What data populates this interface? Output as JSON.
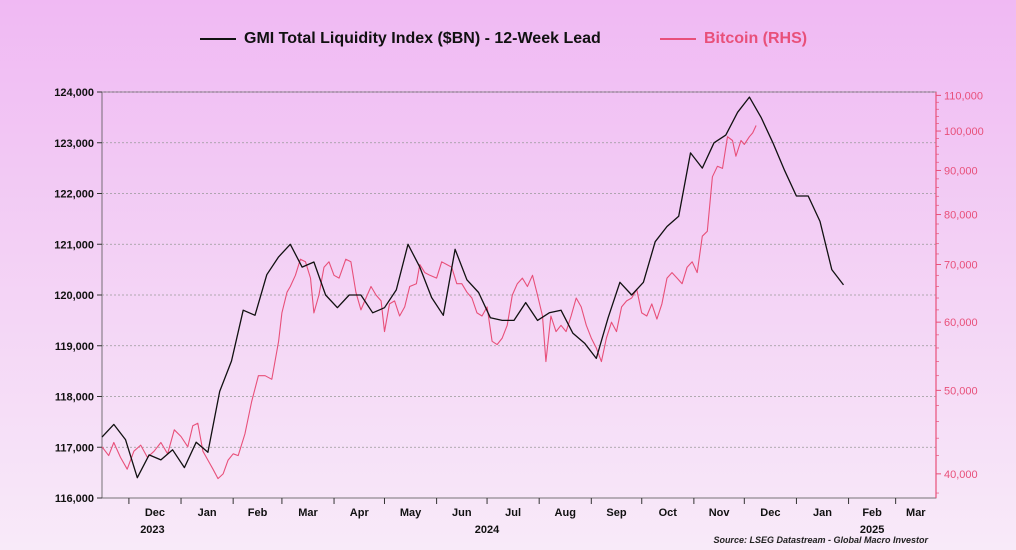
{
  "chart_data": {
    "type": "line",
    "legend": {
      "placement": "top-center"
    },
    "grid": true,
    "source": "Source: LSEG Datastream - Global Macro Investor",
    "x_axis": {
      "range": [
        "2023-11-15",
        "2025-03-25"
      ],
      "month_ticks": [
        {
          "date": "2023-12-01",
          "label": "Dec"
        },
        {
          "date": "2024-01-01",
          "label": "Jan"
        },
        {
          "date": "2024-02-01",
          "label": "Feb"
        },
        {
          "date": "2024-03-01",
          "label": "Mar"
        },
        {
          "date": "2024-04-01",
          "label": "Apr"
        },
        {
          "date": "2024-05-01",
          "label": "May"
        },
        {
          "date": "2024-06-01",
          "label": "Jun"
        },
        {
          "date": "2024-07-01",
          "label": "Jul"
        },
        {
          "date": "2024-08-01",
          "label": "Aug"
        },
        {
          "date": "2024-09-01",
          "label": "Sep"
        },
        {
          "date": "2024-10-01",
          "label": "Oct"
        },
        {
          "date": "2024-11-01",
          "label": "Nov"
        },
        {
          "date": "2024-12-01",
          "label": "Dec"
        },
        {
          "date": "2025-01-01",
          "label": "Jan"
        },
        {
          "date": "2025-02-01",
          "label": "Feb"
        },
        {
          "date": "2025-03-01",
          "label": "Mar"
        }
      ],
      "year_labels": [
        {
          "date": "2023-12-15",
          "label": "2023"
        },
        {
          "date": "2024-07-01",
          "label": "2024"
        },
        {
          "date": "2025-02-15",
          "label": "2025"
        }
      ]
    },
    "y_left": {
      "range": [
        116000,
        124000
      ],
      "ticks": [
        116000,
        117000,
        118000,
        119000,
        120000,
        121000,
        122000,
        123000,
        124000
      ],
      "tick_labels": [
        "116,000",
        "117,000",
        "118,000",
        "119,000",
        "120,000",
        "121,000",
        "122,000",
        "123,000",
        "124,000"
      ]
    },
    "y_right": {
      "scale": "log",
      "range": [
        37500,
        111000
      ],
      "ticks": [
        40000,
        50000,
        60000,
        70000,
        80000,
        90000,
        100000,
        110000
      ],
      "tick_labels": [
        "40,000",
        "50,000",
        "60,000",
        "70,000",
        "80,000",
        "90,000",
        "100,000",
        "110,000"
      ],
      "color": "#e8507a"
    },
    "series": [
      {
        "name": "GMI Total Liquidity Index ($BN) - 12-Week Lead",
        "axis": "left",
        "color": "#111111",
        "points": [
          [
            "2023-11-15",
            117200
          ],
          [
            "2023-11-22",
            117450
          ],
          [
            "2023-11-29",
            117150
          ],
          [
            "2023-12-06",
            116400
          ],
          [
            "2023-12-13",
            116850
          ],
          [
            "2023-12-20",
            116750
          ],
          [
            "2023-12-27",
            116950
          ],
          [
            "2024-01-03",
            116600
          ],
          [
            "2024-01-10",
            117100
          ],
          [
            "2024-01-17",
            116900
          ],
          [
            "2024-01-24",
            118100
          ],
          [
            "2024-01-31",
            118700
          ],
          [
            "2024-02-07",
            119700
          ],
          [
            "2024-02-14",
            119600
          ],
          [
            "2024-02-21",
            120400
          ],
          [
            "2024-02-28",
            120750
          ],
          [
            "2024-03-06",
            121000
          ],
          [
            "2024-03-13",
            120550
          ],
          [
            "2024-03-20",
            120650
          ],
          [
            "2024-03-27",
            120000
          ],
          [
            "2024-04-03",
            119750
          ],
          [
            "2024-04-10",
            120000
          ],
          [
            "2024-04-17",
            120000
          ],
          [
            "2024-04-24",
            119650
          ],
          [
            "2024-05-01",
            119750
          ],
          [
            "2024-05-08",
            120100
          ],
          [
            "2024-05-15",
            121000
          ],
          [
            "2024-05-22",
            120550
          ],
          [
            "2024-05-29",
            119950
          ],
          [
            "2024-06-05",
            119600
          ],
          [
            "2024-06-12",
            120900
          ],
          [
            "2024-06-19",
            120300
          ],
          [
            "2024-06-26",
            120050
          ],
          [
            "2024-07-03",
            119550
          ],
          [
            "2024-07-10",
            119500
          ],
          [
            "2024-07-17",
            119500
          ],
          [
            "2024-07-24",
            119850
          ],
          [
            "2024-07-31",
            119500
          ],
          [
            "2024-08-07",
            119650
          ],
          [
            "2024-08-14",
            119700
          ],
          [
            "2024-08-21",
            119250
          ],
          [
            "2024-08-28",
            119050
          ],
          [
            "2024-09-04",
            118750
          ],
          [
            "2024-09-11",
            119550
          ],
          [
            "2024-09-18",
            120250
          ],
          [
            "2024-09-25",
            120000
          ],
          [
            "2024-10-02",
            120250
          ],
          [
            "2024-10-09",
            121050
          ],
          [
            "2024-10-16",
            121350
          ],
          [
            "2024-10-23",
            121550
          ],
          [
            "2024-10-30",
            122800
          ],
          [
            "2024-11-06",
            122500
          ],
          [
            "2024-11-13",
            123000
          ],
          [
            "2024-11-20",
            123150
          ],
          [
            "2024-11-27",
            123600
          ],
          [
            "2024-12-04",
            123900
          ],
          [
            "2024-12-11",
            123500
          ],
          [
            "2024-12-18",
            123000
          ],
          [
            "2024-12-25",
            122450
          ],
          [
            "2025-01-01",
            121950
          ],
          [
            "2025-01-08",
            121950
          ],
          [
            "2025-01-15",
            121450
          ],
          [
            "2025-01-22",
            120500
          ],
          [
            "2025-01-29",
            120200
          ]
        ]
      },
      {
        "name": "Bitcoin (RHS)",
        "axis": "right",
        "color": "#e8507a",
        "points": [
          [
            "2023-11-15",
            43000
          ],
          [
            "2023-11-19",
            42000
          ],
          [
            "2023-11-22",
            43500
          ],
          [
            "2023-11-26",
            41800
          ],
          [
            "2023-11-30",
            40500
          ],
          [
            "2023-12-04",
            42500
          ],
          [
            "2023-12-08",
            43200
          ],
          [
            "2023-12-12",
            41800
          ],
          [
            "2023-12-16",
            42500
          ],
          [
            "2023-12-20",
            43500
          ],
          [
            "2023-12-24",
            42200
          ],
          [
            "2023-12-28",
            45000
          ],
          [
            "2024-01-01",
            44200
          ],
          [
            "2024-01-05",
            43000
          ],
          [
            "2024-01-08",
            45500
          ],
          [
            "2024-01-11",
            45800
          ],
          [
            "2024-01-14",
            42500
          ],
          [
            "2024-01-17",
            41500
          ],
          [
            "2024-01-20",
            40500
          ],
          [
            "2024-01-23",
            39500
          ],
          [
            "2024-01-26",
            40000
          ],
          [
            "2024-01-29",
            41500
          ],
          [
            "2024-02-01",
            42200
          ],
          [
            "2024-02-04",
            42000
          ],
          [
            "2024-02-08",
            44500
          ],
          [
            "2024-02-12",
            48500
          ],
          [
            "2024-02-16",
            52000
          ],
          [
            "2024-02-20",
            52000
          ],
          [
            "2024-02-24",
            51500
          ],
          [
            "2024-02-28",
            57000
          ],
          [
            "2024-03-01",
            61500
          ],
          [
            "2024-03-04",
            65000
          ],
          [
            "2024-03-06",
            66000
          ],
          [
            "2024-03-09",
            68000
          ],
          [
            "2024-03-12",
            71000
          ],
          [
            "2024-03-15",
            70500
          ],
          [
            "2024-03-18",
            67500
          ],
          [
            "2024-03-20",
            61500
          ],
          [
            "2024-03-23",
            64500
          ],
          [
            "2024-03-26",
            69500
          ],
          [
            "2024-03-29",
            70500
          ],
          [
            "2024-04-01",
            68000
          ],
          [
            "2024-04-04",
            67500
          ],
          [
            "2024-04-08",
            71000
          ],
          [
            "2024-04-11",
            70500
          ],
          [
            "2024-04-14",
            65000
          ],
          [
            "2024-04-17",
            62000
          ],
          [
            "2024-04-20",
            64000
          ],
          [
            "2024-04-23",
            66000
          ],
          [
            "2024-04-26",
            64500
          ],
          [
            "2024-04-29",
            63500
          ],
          [
            "2024-05-01",
            58500
          ],
          [
            "2024-05-04",
            63000
          ],
          [
            "2024-05-07",
            63500
          ],
          [
            "2024-05-10",
            61000
          ],
          [
            "2024-05-13",
            62500
          ],
          [
            "2024-05-16",
            66000
          ],
          [
            "2024-05-20",
            66500
          ],
          [
            "2024-05-22",
            70000
          ],
          [
            "2024-05-25",
            68500
          ],
          [
            "2024-05-28",
            68000
          ],
          [
            "2024-06-01",
            67500
          ],
          [
            "2024-06-04",
            70500
          ],
          [
            "2024-06-07",
            70000
          ],
          [
            "2024-06-10",
            69500
          ],
          [
            "2024-06-13",
            66500
          ],
          [
            "2024-06-16",
            66500
          ],
          [
            "2024-06-19",
            65000
          ],
          [
            "2024-06-22",
            64000
          ],
          [
            "2024-06-25",
            61500
          ],
          [
            "2024-06-28",
            61000
          ],
          [
            "2024-07-01",
            62500
          ],
          [
            "2024-07-04",
            57000
          ],
          [
            "2024-07-07",
            56500
          ],
          [
            "2024-07-10",
            57500
          ],
          [
            "2024-07-13",
            59500
          ],
          [
            "2024-07-16",
            64500
          ],
          [
            "2024-07-19",
            66500
          ],
          [
            "2024-07-22",
            67500
          ],
          [
            "2024-07-25",
            66000
          ],
          [
            "2024-07-28",
            68000
          ],
          [
            "2024-07-31",
            64500
          ],
          [
            "2024-08-03",
            61000
          ],
          [
            "2024-08-05",
            54000
          ],
          [
            "2024-08-08",
            61000
          ],
          [
            "2024-08-11",
            58500
          ],
          [
            "2024-08-14",
            59500
          ],
          [
            "2024-08-17",
            58500
          ],
          [
            "2024-08-20",
            61000
          ],
          [
            "2024-08-23",
            64000
          ],
          [
            "2024-08-26",
            62500
          ],
          [
            "2024-08-29",
            59500
          ],
          [
            "2024-09-01",
            57500
          ],
          [
            "2024-09-04",
            56000
          ],
          [
            "2024-09-07",
            54000
          ],
          [
            "2024-09-10",
            57500
          ],
          [
            "2024-09-13",
            60000
          ],
          [
            "2024-09-16",
            58500
          ],
          [
            "2024-09-19",
            62500
          ],
          [
            "2024-09-22",
            63500
          ],
          [
            "2024-09-25",
            64000
          ],
          [
            "2024-09-28",
            65500
          ],
          [
            "2024-10-01",
            61500
          ],
          [
            "2024-10-04",
            61000
          ],
          [
            "2024-10-07",
            63000
          ],
          [
            "2024-10-10",
            60500
          ],
          [
            "2024-10-13",
            63000
          ],
          [
            "2024-10-16",
            67500
          ],
          [
            "2024-10-19",
            68500
          ],
          [
            "2024-10-22",
            67500
          ],
          [
            "2024-10-25",
            66500
          ],
          [
            "2024-10-28",
            69500
          ],
          [
            "2024-10-31",
            70500
          ],
          [
            "2024-11-03",
            68500
          ],
          [
            "2024-11-06",
            75500
          ],
          [
            "2024-11-09",
            76500
          ],
          [
            "2024-11-12",
            88500
          ],
          [
            "2024-11-15",
            91000
          ],
          [
            "2024-11-18",
            90500
          ],
          [
            "2024-11-21",
            98500
          ],
          [
            "2024-11-24",
            97500
          ],
          [
            "2024-11-26",
            93500
          ],
          [
            "2024-11-29",
            97500
          ],
          [
            "2024-12-01",
            96500
          ],
          [
            "2024-12-04",
            98500
          ],
          [
            "2024-12-06",
            99500
          ],
          [
            "2024-12-08",
            101500
          ]
        ]
      }
    ]
  }
}
